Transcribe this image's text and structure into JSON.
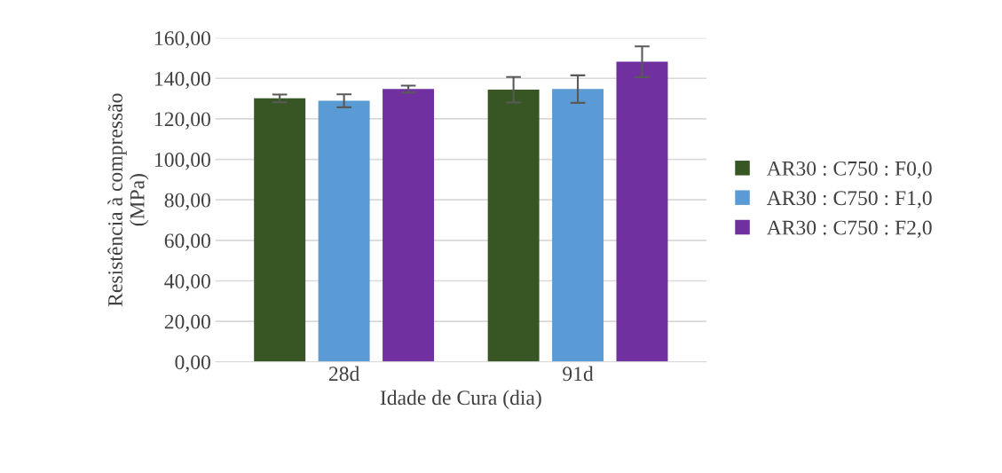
{
  "chart_data": {
    "type": "bar",
    "xlabel": "Idade de Cura (dia)",
    "ylabel": "Resistência à compressão\n(MPa)",
    "categories": [
      "28d",
      "91d"
    ],
    "series": [
      {
        "name": "AR30 : C750 : F0,0",
        "color": "#375623",
        "values": [
          130.1,
          134.4
        ],
        "errors": [
          1.9,
          6.3
        ]
      },
      {
        "name": "AR30 : C750 : F1,0",
        "color": "#5b9bd5",
        "values": [
          128.9,
          134.7
        ],
        "errors": [
          3.2,
          6.8
        ]
      },
      {
        "name": "AR30 : C750 : F2,0",
        "color": "#7030a0",
        "values": [
          134.7,
          148.2
        ],
        "errors": [
          1.7,
          7.6
        ]
      }
    ],
    "ylim": [
      0,
      160
    ],
    "yticks": [
      {
        "value": 0,
        "label": "0,00"
      },
      {
        "value": 20,
        "label": "20,00"
      },
      {
        "value": 40,
        "label": "40,00"
      },
      {
        "value": 60,
        "label": "60,00"
      },
      {
        "value": 80,
        "label": "80,00"
      },
      {
        "value": 100,
        "label": "100,00"
      },
      {
        "value": 120,
        "label": "120,00"
      },
      {
        "value": 140,
        "label": "140,00"
      },
      {
        "value": 160,
        "label": "160,00"
      }
    ],
    "grid": "y",
    "legend": "right"
  }
}
